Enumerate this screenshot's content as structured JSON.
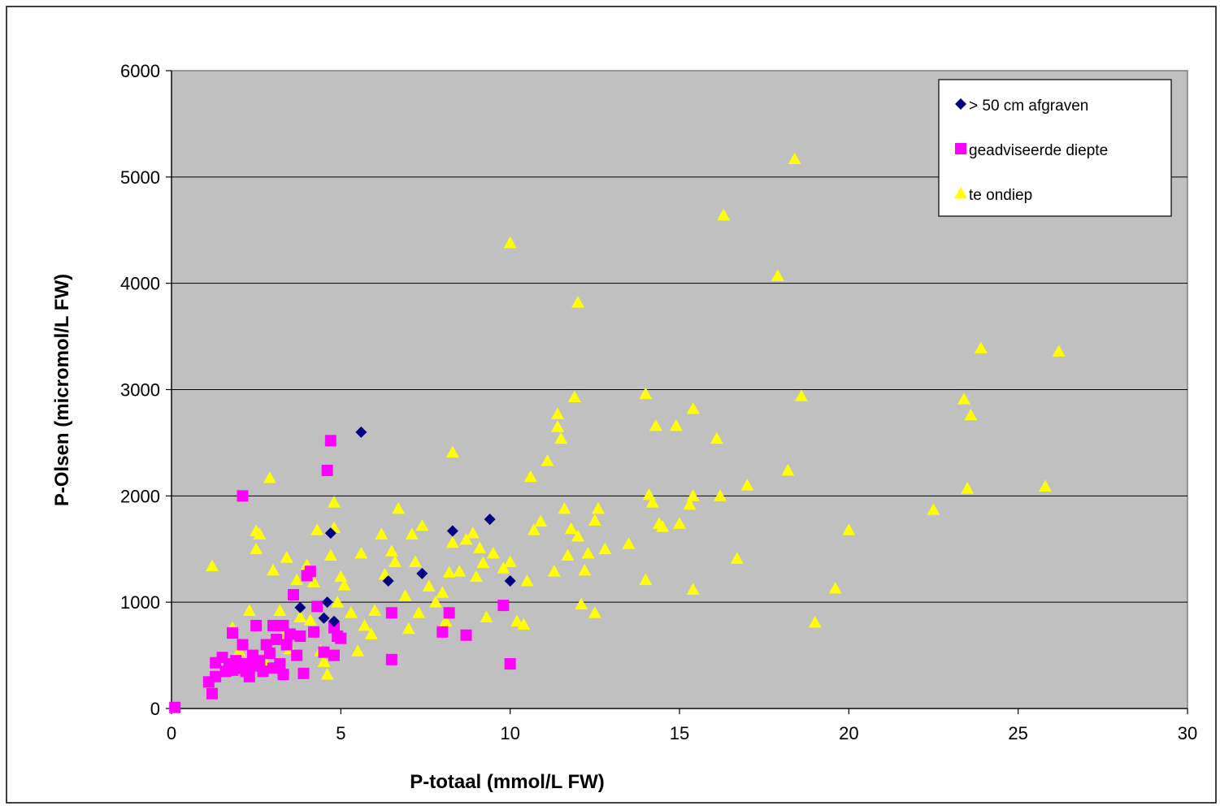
{
  "chart_data": {
    "type": "scatter",
    "xlabel": "P-totaal (mmol/L FW)",
    "ylabel": "P-Olsen (micromol/L FW)",
    "xlim": [
      0,
      30
    ],
    "ylim": [
      0,
      6000
    ],
    "xticks": [
      "0",
      "5",
      "10",
      "15",
      "20",
      "25",
      "30"
    ],
    "yticks": [
      "0",
      "1000",
      "2000",
      "3000",
      "4000",
      "5000",
      "6000"
    ],
    "grid": "horizontal",
    "legend_position": "top-right",
    "plot_background": "#C0C0C0",
    "series": [
      {
        "name": "> 50 cm afgraven",
        "marker": "diamond",
        "color": "#000080",
        "points": [
          [
            5.6,
            2600
          ],
          [
            3.8,
            950
          ],
          [
            4.5,
            850
          ],
          [
            4.6,
            1000
          ],
          [
            4.8,
            820
          ],
          [
            4.7,
            1650
          ],
          [
            6.4,
            1200
          ],
          [
            7.4,
            1270
          ],
          [
            8.3,
            1670
          ],
          [
            9.4,
            1780
          ],
          [
            10.0,
            1200
          ]
        ]
      },
      {
        "name": "geadviseerde diepte",
        "marker": "square",
        "color": "#FF00FF",
        "points": [
          [
            0.1,
            10
          ],
          [
            1.1,
            250
          ],
          [
            1.2,
            140
          ],
          [
            1.3,
            300
          ],
          [
            1.3,
            430
          ],
          [
            1.5,
            480
          ],
          [
            1.6,
            350
          ],
          [
            1.7,
            420
          ],
          [
            1.8,
            710
          ],
          [
            1.8,
            360
          ],
          [
            1.9,
            450
          ],
          [
            2.0,
            380
          ],
          [
            2.1,
            600
          ],
          [
            2.1,
            2000
          ],
          [
            2.2,
            420
          ],
          [
            2.2,
            350
          ],
          [
            2.3,
            300
          ],
          [
            2.4,
            500
          ],
          [
            2.5,
            780
          ],
          [
            2.5,
            400
          ],
          [
            2.6,
            450
          ],
          [
            2.7,
            350
          ],
          [
            2.8,
            600
          ],
          [
            2.9,
            520
          ],
          [
            3.0,
            780
          ],
          [
            3.0,
            380
          ],
          [
            3.1,
            650
          ],
          [
            3.2,
            420
          ],
          [
            3.3,
            780
          ],
          [
            3.3,
            320
          ],
          [
            3.4,
            600
          ],
          [
            3.5,
            700
          ],
          [
            3.6,
            1070
          ],
          [
            3.7,
            500
          ],
          [
            3.8,
            680
          ],
          [
            3.9,
            330
          ],
          [
            4.0,
            1250
          ],
          [
            4.1,
            1290
          ],
          [
            4.2,
            720
          ],
          [
            4.3,
            960
          ],
          [
            4.5,
            530
          ],
          [
            4.6,
            2240
          ],
          [
            4.7,
            2520
          ],
          [
            4.8,
            760
          ],
          [
            4.8,
            500
          ],
          [
            4.9,
            680
          ],
          [
            5.0,
            660
          ],
          [
            6.5,
            900
          ],
          [
            6.5,
            460
          ],
          [
            8.0,
            720
          ],
          [
            8.2,
            900
          ],
          [
            8.7,
            690
          ],
          [
            9.8,
            970
          ],
          [
            10.0,
            420
          ]
        ]
      },
      {
        "name": "te ondiep",
        "marker": "triangle",
        "color": "#FFFF00",
        "points": [
          [
            1.2,
            1340
          ],
          [
            1.8,
            760
          ],
          [
            2.0,
            540
          ],
          [
            2.3,
            920
          ],
          [
            2.5,
            1500
          ],
          [
            2.5,
            1670
          ],
          [
            2.6,
            1640
          ],
          [
            2.8,
            420
          ],
          [
            2.9,
            2170
          ],
          [
            3.0,
            1300
          ],
          [
            3.2,
            920
          ],
          [
            3.3,
            700
          ],
          [
            3.4,
            1420
          ],
          [
            3.5,
            560
          ],
          [
            3.6,
            1060
          ],
          [
            3.7,
            1210
          ],
          [
            3.8,
            860
          ],
          [
            4.0,
            1350
          ],
          [
            4.1,
            830
          ],
          [
            4.2,
            1190
          ],
          [
            4.3,
            1680
          ],
          [
            4.4,
            540
          ],
          [
            4.5,
            440
          ],
          [
            4.6,
            320
          ],
          [
            4.7,
            1440
          ],
          [
            4.8,
            1700
          ],
          [
            4.8,
            1940
          ],
          [
            4.9,
            1000
          ],
          [
            5.0,
            1240
          ],
          [
            5.1,
            1160
          ],
          [
            5.3,
            900
          ],
          [
            5.5,
            540
          ],
          [
            5.6,
            1460
          ],
          [
            5.7,
            780
          ],
          [
            5.9,
            700
          ],
          [
            6.0,
            920
          ],
          [
            6.2,
            1640
          ],
          [
            6.3,
            1260
          ],
          [
            6.5,
            1480
          ],
          [
            6.6,
            1380
          ],
          [
            6.7,
            1880
          ],
          [
            6.9,
            1060
          ],
          [
            7.0,
            750
          ],
          [
            7.1,
            1640
          ],
          [
            7.2,
            1380
          ],
          [
            7.3,
            900
          ],
          [
            7.4,
            1720
          ],
          [
            7.6,
            1150
          ],
          [
            7.8,
            1000
          ],
          [
            8.0,
            1090
          ],
          [
            8.1,
            820
          ],
          [
            8.2,
            1280
          ],
          [
            8.3,
            2410
          ],
          [
            8.3,
            1560
          ],
          [
            8.5,
            1290
          ],
          [
            8.7,
            1590
          ],
          [
            8.9,
            1650
          ],
          [
            9.0,
            1240
          ],
          [
            9.1,
            1510
          ],
          [
            9.2,
            1370
          ],
          [
            9.3,
            860
          ],
          [
            9.5,
            1460
          ],
          [
            9.8,
            1320
          ],
          [
            10.0,
            4380
          ],
          [
            10.0,
            1380
          ],
          [
            10.2,
            820
          ],
          [
            10.4,
            790
          ],
          [
            10.5,
            1200
          ],
          [
            10.6,
            2180
          ],
          [
            10.7,
            1680
          ],
          [
            10.9,
            1760
          ],
          [
            11.1,
            2330
          ],
          [
            11.3,
            1290
          ],
          [
            11.4,
            2650
          ],
          [
            11.4,
            2770
          ],
          [
            11.5,
            2540
          ],
          [
            11.6,
            1880
          ],
          [
            11.7,
            1440
          ],
          [
            11.8,
            1690
          ],
          [
            11.9,
            2930
          ],
          [
            12.0,
            1620
          ],
          [
            12.0,
            3820
          ],
          [
            12.1,
            980
          ],
          [
            12.2,
            1300
          ],
          [
            12.3,
            1460
          ],
          [
            12.5,
            1770
          ],
          [
            12.5,
            900
          ],
          [
            12.6,
            1880
          ],
          [
            12.8,
            1500
          ],
          [
            13.5,
            1550
          ],
          [
            14.0,
            2960
          ],
          [
            14.0,
            1210
          ],
          [
            14.1,
            2010
          ],
          [
            14.2,
            1940
          ],
          [
            14.3,
            2660
          ],
          [
            14.4,
            1740
          ],
          [
            14.5,
            1710
          ],
          [
            14.9,
            2660
          ],
          [
            15.0,
            1740
          ],
          [
            15.3,
            1920
          ],
          [
            15.4,
            2000
          ],
          [
            15.4,
            2820
          ],
          [
            15.4,
            1120
          ],
          [
            16.1,
            2540
          ],
          [
            16.2,
            2000
          ],
          [
            16.3,
            4640
          ],
          [
            16.7,
            1410
          ],
          [
            17.0,
            2100
          ],
          [
            17.9,
            4070
          ],
          [
            18.2,
            2240
          ],
          [
            18.4,
            5170
          ],
          [
            18.6,
            2940
          ],
          [
            19.0,
            810
          ],
          [
            19.6,
            1130
          ],
          [
            20.0,
            1680
          ],
          [
            22.5,
            1870
          ],
          [
            23.4,
            2910
          ],
          [
            23.5,
            2070
          ],
          [
            23.6,
            2760
          ],
          [
            23.9,
            3390
          ],
          [
            25.8,
            2090
          ],
          [
            26.2,
            3360
          ]
        ]
      }
    ]
  }
}
